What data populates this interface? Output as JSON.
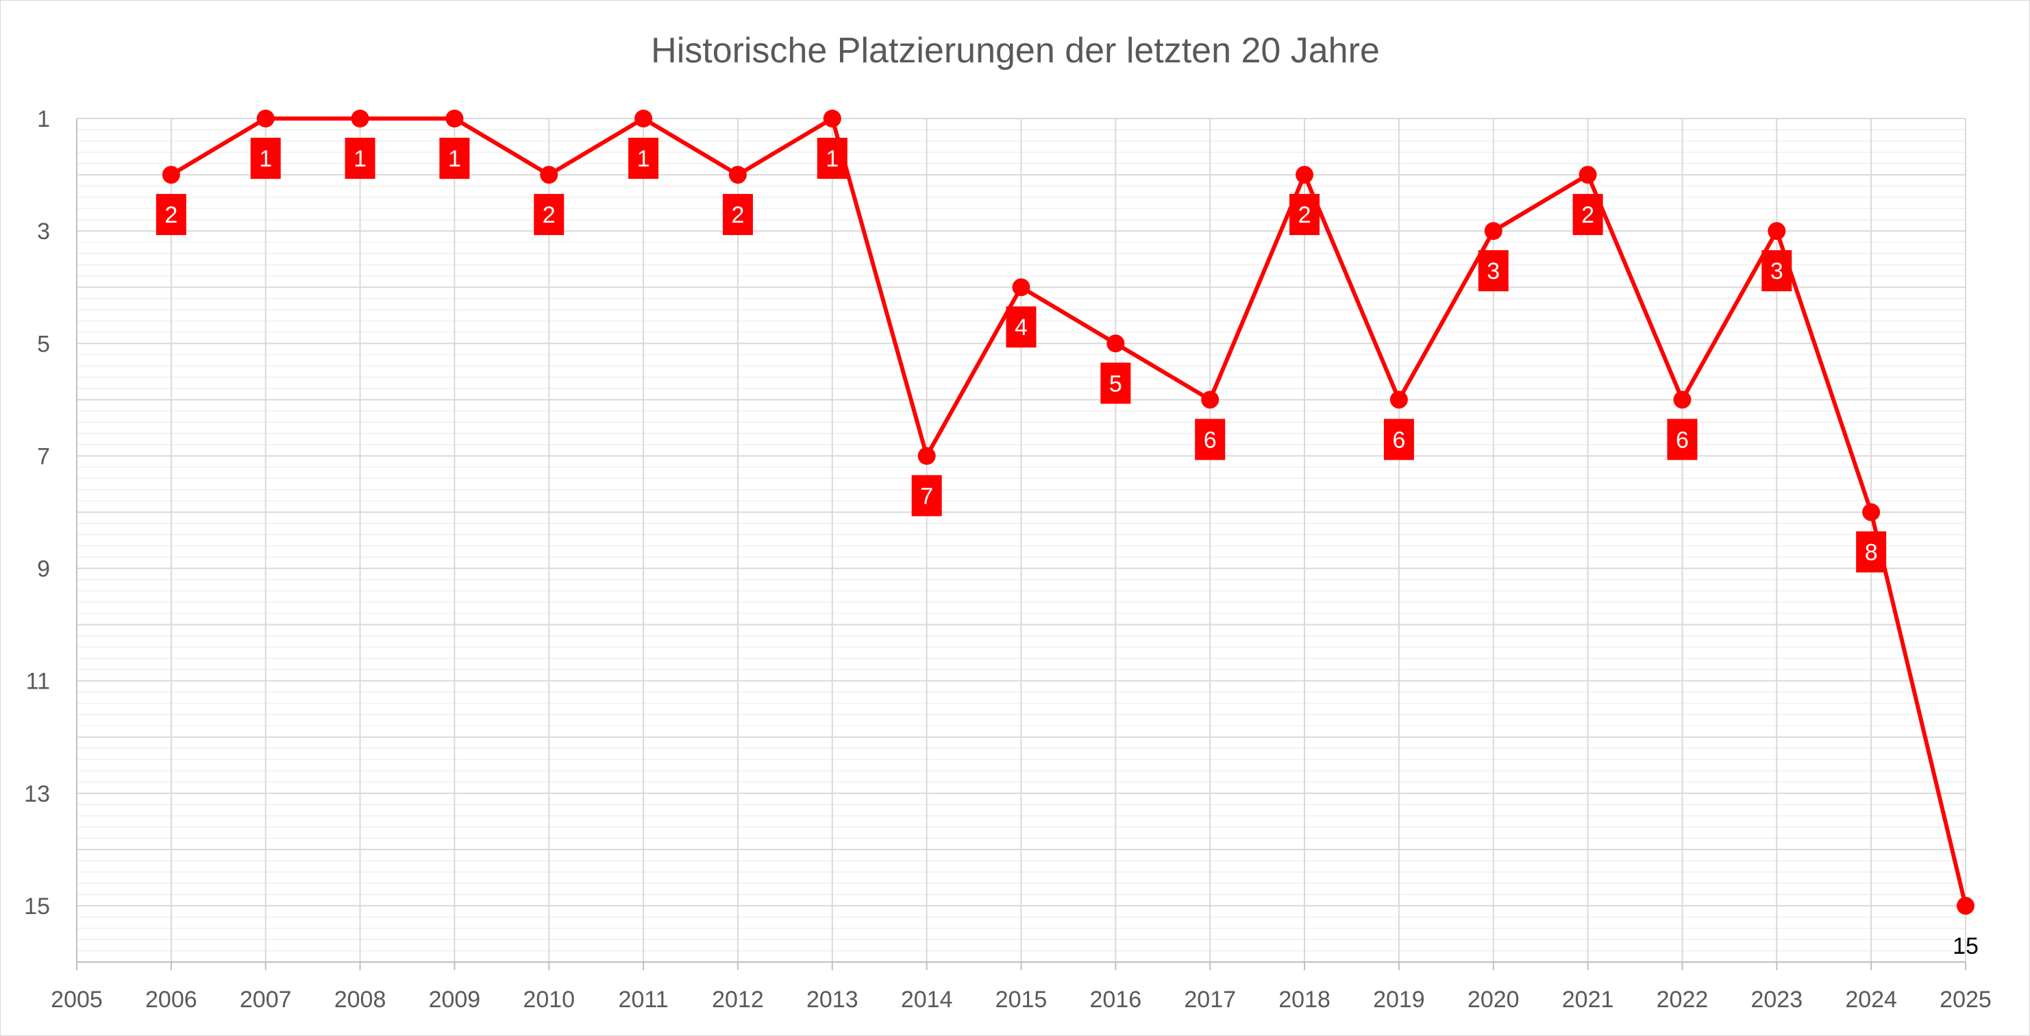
{
  "chart_data": {
    "type": "line",
    "title": "Historische Platzierungen der letzten 20 Jahre",
    "xlabel": "",
    "ylabel": "",
    "x_ticks": [
      "2005",
      "2006",
      "2007",
      "2008",
      "2009",
      "2010",
      "2011",
      "2012",
      "2013",
      "2014",
      "2015",
      "2016",
      "2017",
      "2018",
      "2019",
      "2020",
      "2021",
      "2022",
      "2023",
      "2024",
      "2025"
    ],
    "y_ticks": [
      "1",
      "3",
      "5",
      "7",
      "9",
      "11",
      "13",
      "15"
    ],
    "xlim": [
      2005,
      2025
    ],
    "ylim": [
      1,
      16
    ],
    "y_reversed": true,
    "grid": {
      "major": true,
      "minor": true
    },
    "legend": "none",
    "colors": {
      "series": "#ff0000",
      "major_grid": "#d9d9d9",
      "minor_grid": "#efefef",
      "text": "#595959"
    },
    "series": [
      {
        "x": [
          2006,
          2007,
          2008,
          2009,
          2010,
          2011,
          2012,
          2013,
          2014,
          2015,
          2016,
          2017,
          2018,
          2019,
          2020,
          2021,
          2022,
          2023,
          2024,
          2025
        ],
        "values": [
          2,
          1,
          1,
          1,
          2,
          1,
          2,
          1,
          7,
          4,
          5,
          6,
          2,
          6,
          3,
          2,
          6,
          3,
          8,
          15
        ],
        "labels": [
          "2",
          "1",
          "1",
          "1",
          "2",
          "1",
          "2",
          "1",
          "7",
          "4",
          "5",
          "6",
          "2",
          "6",
          "3",
          "2",
          "6",
          "3",
          "8",
          "15"
        ]
      }
    ]
  }
}
